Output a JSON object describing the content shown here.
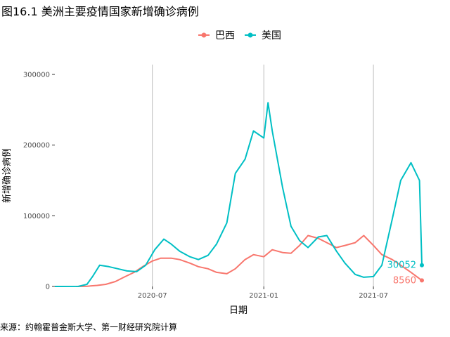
{
  "figure": {
    "title": "图16.1 美洲主要疫情国家新增确诊病例",
    "source": "来源：约翰霍普金斯大学、第一财经研究院计算"
  },
  "chart_data": {
    "type": "line",
    "xlabel": "日期",
    "ylabel": "新增确诊病例",
    "ylim": [
      0,
      300000
    ],
    "xlim": [
      "2020-01-22",
      "2021-09-19"
    ],
    "x_ticks": [
      "2020-07",
      "2021-01",
      "2021-07"
    ],
    "y_ticks": [
      0,
      100000,
      200000,
      300000
    ],
    "grid": "vertical gridlines at x ticks",
    "legend_position": "top",
    "series": [
      {
        "name": "巴西",
        "color": "#F8766D",
        "end_value": 8560,
        "end_label": "8560",
        "points": [
          [
            "2020-02-26",
            0
          ],
          [
            "2020-03-15",
            300
          ],
          [
            "2020-04-01",
            1500
          ],
          [
            "2020-04-15",
            3000
          ],
          [
            "2020-05-01",
            7000
          ],
          [
            "2020-05-15",
            13000
          ],
          [
            "2020-06-01",
            20000
          ],
          [
            "2020-06-15",
            28000
          ],
          [
            "2020-07-01",
            36000
          ],
          [
            "2020-07-15",
            40000
          ],
          [
            "2020-08-01",
            40000
          ],
          [
            "2020-08-15",
            38000
          ],
          [
            "2020-09-01",
            33000
          ],
          [
            "2020-09-15",
            28000
          ],
          [
            "2020-10-01",
            25000
          ],
          [
            "2020-10-15",
            20000
          ],
          [
            "2020-11-01",
            18000
          ],
          [
            "2020-11-15",
            25000
          ],
          [
            "2020-12-01",
            38000
          ],
          [
            "2020-12-15",
            45000
          ],
          [
            "2021-01-01",
            42000
          ],
          [
            "2021-01-15",
            52000
          ],
          [
            "2021-02-01",
            48000
          ],
          [
            "2021-02-15",
            47000
          ],
          [
            "2021-03-01",
            58000
          ],
          [
            "2021-03-15",
            72000
          ],
          [
            "2021-04-01",
            68000
          ],
          [
            "2021-04-15",
            62000
          ],
          [
            "2021-05-01",
            55000
          ],
          [
            "2021-05-15",
            58000
          ],
          [
            "2021-06-01",
            62000
          ],
          [
            "2021-06-15",
            72000
          ],
          [
            "2021-07-01",
            58000
          ],
          [
            "2021-07-15",
            45000
          ],
          [
            "2021-08-01",
            38000
          ],
          [
            "2021-08-15",
            30000
          ],
          [
            "2021-09-01",
            20000
          ],
          [
            "2021-09-19",
            8560
          ]
        ]
      },
      {
        "name": "美国",
        "color": "#00BFC4",
        "end_value": 30052,
        "end_label": "30052",
        "points": [
          [
            "2020-01-22",
            0
          ],
          [
            "2020-03-01",
            100
          ],
          [
            "2020-03-15",
            3000
          ],
          [
            "2020-03-25",
            15000
          ],
          [
            "2020-04-05",
            30000
          ],
          [
            "2020-04-20",
            28000
          ],
          [
            "2020-05-05",
            25000
          ],
          [
            "2020-05-20",
            22000
          ],
          [
            "2020-06-05",
            21000
          ],
          [
            "2020-06-20",
            30000
          ],
          [
            "2020-07-05",
            52000
          ],
          [
            "2020-07-20",
            67000
          ],
          [
            "2020-08-01",
            60000
          ],
          [
            "2020-08-15",
            50000
          ],
          [
            "2020-09-01",
            42000
          ],
          [
            "2020-09-15",
            38000
          ],
          [
            "2020-10-01",
            44000
          ],
          [
            "2020-10-15",
            60000
          ],
          [
            "2020-11-01",
            90000
          ],
          [
            "2020-11-15",
            160000
          ],
          [
            "2020-12-01",
            180000
          ],
          [
            "2020-12-15",
            220000
          ],
          [
            "2021-01-01",
            210000
          ],
          [
            "2021-01-08",
            260000
          ],
          [
            "2021-01-15",
            220000
          ],
          [
            "2021-02-01",
            140000
          ],
          [
            "2021-02-15",
            85000
          ],
          [
            "2021-03-01",
            65000
          ],
          [
            "2021-03-15",
            55000
          ],
          [
            "2021-04-01",
            70000
          ],
          [
            "2021-04-15",
            72000
          ],
          [
            "2021-05-01",
            50000
          ],
          [
            "2021-05-15",
            33000
          ],
          [
            "2021-06-01",
            17000
          ],
          [
            "2021-06-15",
            13000
          ],
          [
            "2021-07-01",
            14000
          ],
          [
            "2021-07-15",
            30000
          ],
          [
            "2021-08-01",
            95000
          ],
          [
            "2021-08-15",
            150000
          ],
          [
            "2021-09-01",
            175000
          ],
          [
            "2021-09-15",
            150000
          ],
          [
            "2021-09-19",
            30052
          ]
        ]
      }
    ]
  }
}
